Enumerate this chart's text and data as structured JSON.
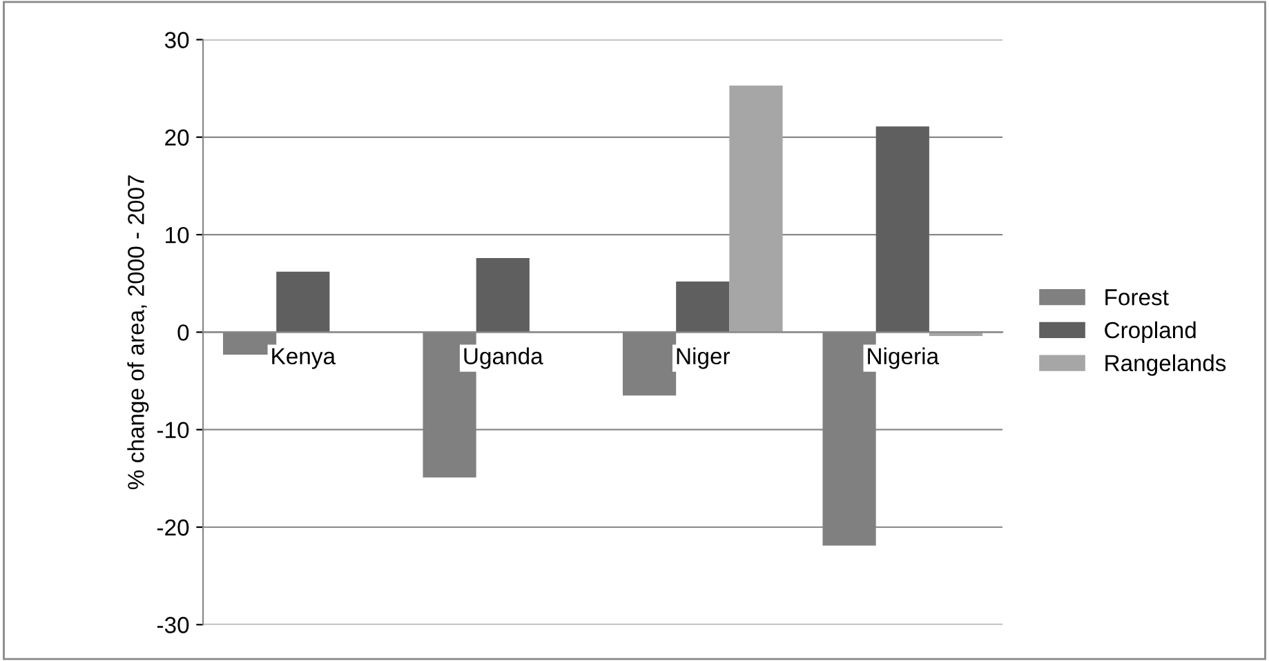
{
  "chart_data": {
    "type": "bar",
    "ylabel": "% change of area, 2000 - 2007",
    "categories": [
      "Kenya",
      "Uganda",
      "Niger",
      "Nigeria"
    ],
    "series": [
      {
        "name": "Forest",
        "color": "#808080",
        "values": [
          -2.3,
          -14.9,
          -6.5,
          -21.9
        ]
      },
      {
        "name": "Cropland",
        "color": "#5f5f5f",
        "values": [
          6.2,
          7.6,
          5.2,
          21.1
        ]
      },
      {
        "name": "Rangelands",
        "color": "#a6a6a6",
        "values": [
          null,
          null,
          25.3,
          -0.4
        ]
      }
    ],
    "ylim": [
      -30,
      30
    ],
    "yticks": [
      -30,
      -20,
      -10,
      0,
      10,
      20,
      30
    ],
    "grid": "y",
    "legend": "right"
  }
}
